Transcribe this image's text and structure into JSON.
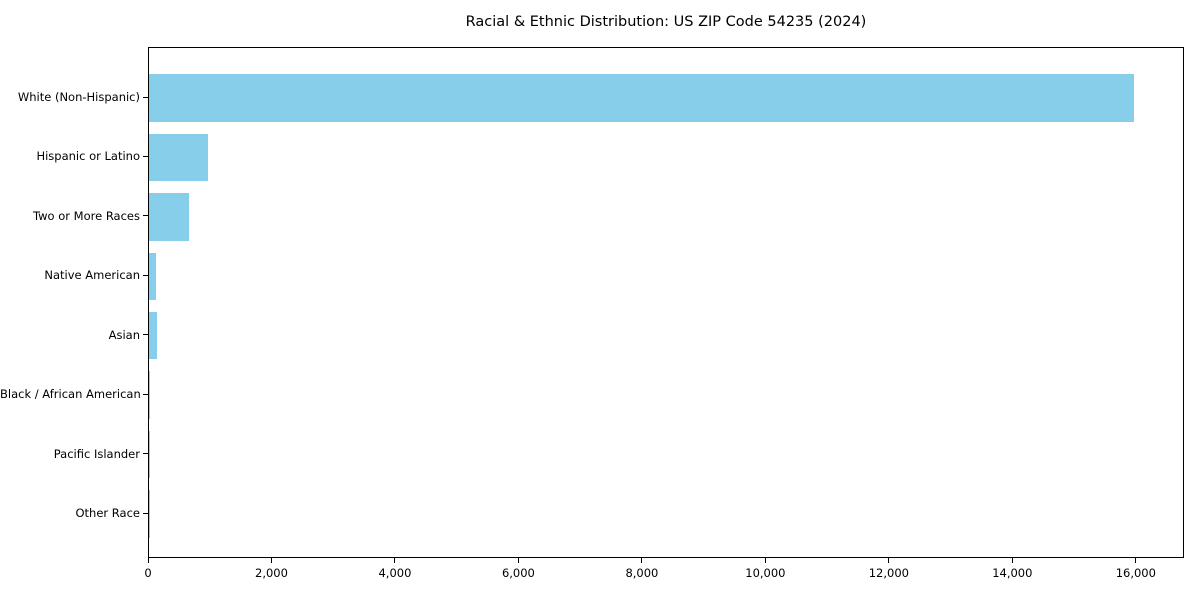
{
  "chart_data": {
    "type": "bar",
    "orientation": "horizontal",
    "title": "Racial & Ethnic Distribution: US ZIP Code 54235 (2024)",
    "categories": [
      "White (Non-Hispanic)",
      "Hispanic or Latino",
      "Two or More Races",
      "Native American",
      "Asian",
      "Black / African American",
      "Pacific Islander",
      "Other Race"
    ],
    "values": [
      15950,
      950,
      650,
      120,
      130,
      15,
      5,
      10
    ],
    "xlabel": "",
    "ylabel": "",
    "xlim": [
      0,
      16748
    ],
    "x_ticks": [
      0,
      2000,
      4000,
      6000,
      8000,
      10000,
      12000,
      14000,
      16000
    ],
    "x_tick_labels": [
      "0",
      "2,000",
      "4,000",
      "6,000",
      "8,000",
      "10,000",
      "12,000",
      "14,000",
      "16,000"
    ],
    "bar_color": "#87CEEB",
    "frame_color": "#000000",
    "text_color": "#000000",
    "background_color": "#ffffff",
    "grid": false,
    "legend": null
  }
}
